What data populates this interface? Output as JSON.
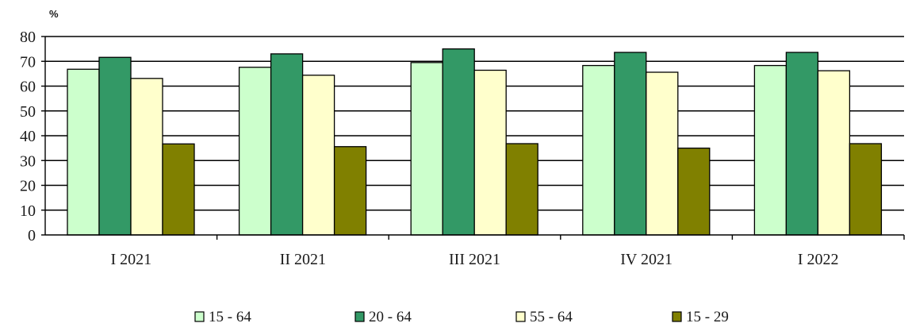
{
  "chart_data": {
    "type": "bar",
    "unit_label": "%",
    "categories": [
      "I 2021",
      "II 2021",
      "III 2021",
      "IV 2021",
      "I 2022"
    ],
    "series": [
      {
        "name": "15 - 64",
        "color": "#ccffcc",
        "values": [
          66.8,
          67.6,
          69.5,
          68.3,
          68.3
        ]
      },
      {
        "name": "20 - 64",
        "color": "#339966",
        "values": [
          71.6,
          73.0,
          75.0,
          73.6,
          73.6
        ]
      },
      {
        "name": "55 - 64",
        "color": "#ffffcc",
        "values": [
          63.1,
          64.4,
          66.4,
          65.6,
          66.2
        ]
      },
      {
        "name": "15 - 29",
        "color": "#808000",
        "values": [
          36.7,
          35.6,
          36.8,
          35.0,
          36.8
        ]
      }
    ],
    "ylim": [
      0,
      80
    ],
    "yticks": [
      0,
      10,
      20,
      30,
      40,
      50,
      60,
      70,
      80
    ],
    "grid": true,
    "legend_position": "bottom"
  }
}
